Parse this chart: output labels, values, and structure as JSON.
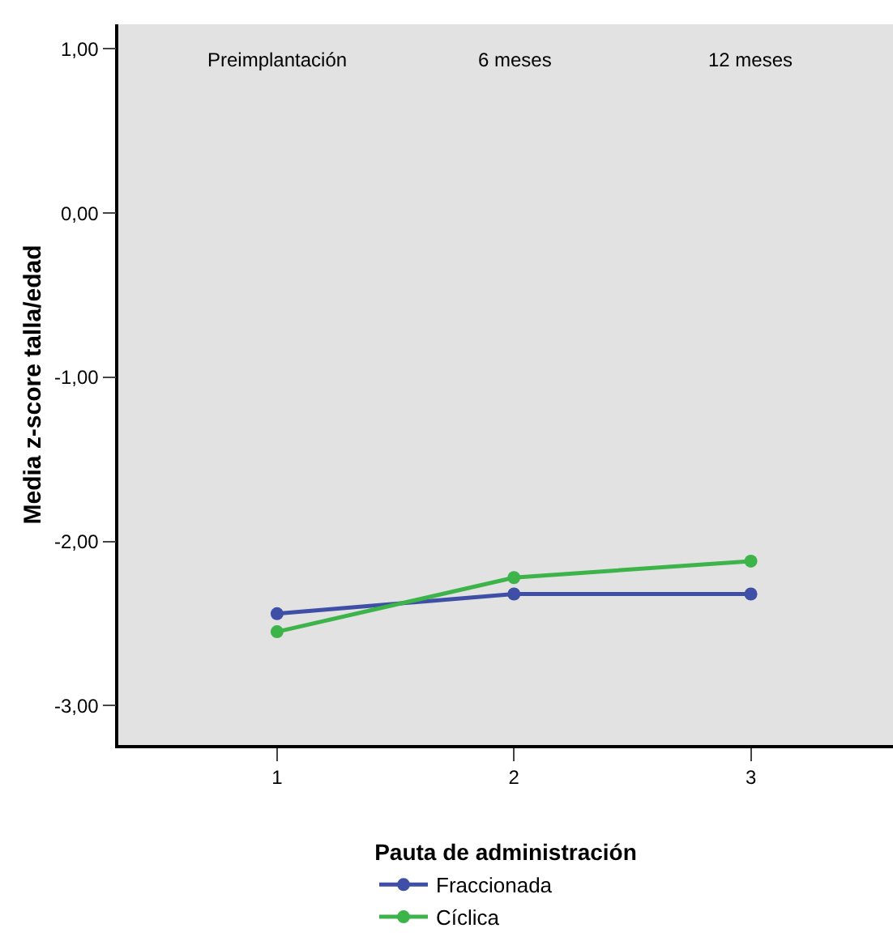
{
  "chart_data": {
    "type": "line",
    "ylabel": "Media z-score talla/edad",
    "legend_title": "Pauta de administración",
    "x": [
      1,
      2,
      3
    ],
    "series": [
      {
        "name": "Fraccionada",
        "color": "#3f4fa6",
        "values": [
          -2.44,
          -2.32,
          -2.32
        ]
      },
      {
        "name": "Cíclica",
        "color": "#3cb44a",
        "values": [
          -2.55,
          -2.22,
          -2.12
        ]
      }
    ],
    "xlim": [
      0.33,
      3.6
    ],
    "xticks": [
      1,
      2,
      3
    ],
    "ylim": [
      -3.24,
      1.15
    ],
    "yticks": [
      {
        "value": 1,
        "label": "1,00"
      },
      {
        "value": 0,
        "label": "0,00"
      },
      {
        "value": -1,
        "label": "-1,00"
      },
      {
        "value": -2,
        "label": "-2,00"
      },
      {
        "value": -3,
        "label": "-3,00"
      }
    ],
    "annotations": [
      "Preimplantación",
      "6 meses",
      "12 meses"
    ],
    "grid": false,
    "legend": "bottom",
    "marker": "circle",
    "line_style": "solid"
  }
}
